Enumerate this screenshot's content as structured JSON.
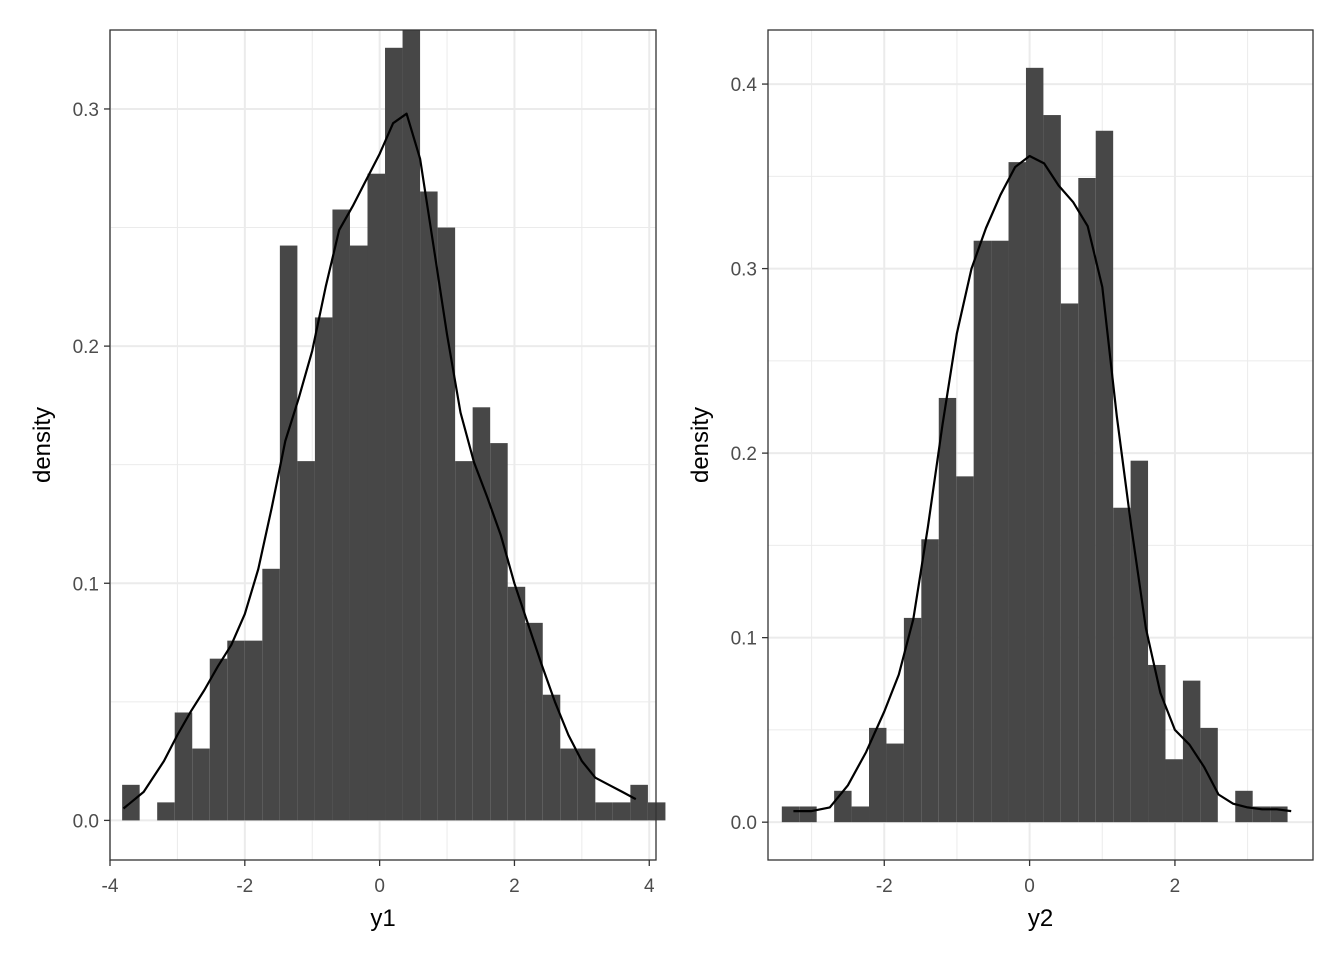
{
  "chart_data": [
    {
      "type": "bar",
      "subtype": "histogram-with-density",
      "xlabel": "y1",
      "ylabel": "density",
      "xlim": [
        -4.0,
        4.1
      ],
      "ylim": [
        -0.0167,
        0.3333
      ],
      "x_ticks": [
        -4,
        -2,
        0,
        2,
        4
      ],
      "x_tick_labels": [
        "-4",
        "-2",
        "0",
        "2",
        "4"
      ],
      "y_ticks": [
        0.0,
        0.1,
        0.2,
        0.3
      ],
      "y_tick_labels": [
        "0.0",
        "0.1",
        "0.2",
        "0.3"
      ],
      "grid": true,
      "bar_color": "#474747",
      "line_color": "#000000",
      "bins": [
        {
          "x0": -3.82,
          "x1": -3.56,
          "density": 0.015
        },
        {
          "x0": -3.56,
          "x1": -3.3,
          "density": 0.0
        },
        {
          "x0": -3.3,
          "x1": -3.04,
          "density": 0.0076
        },
        {
          "x0": -3.04,
          "x1": -2.78,
          "density": 0.0455
        },
        {
          "x0": -2.78,
          "x1": -2.52,
          "density": 0.0303
        },
        {
          "x0": -2.52,
          "x1": -2.26,
          "density": 0.0682
        },
        {
          "x0": -2.26,
          "x1": -2.0,
          "density": 0.0758
        },
        {
          "x0": -2.0,
          "x1": -1.74,
          "density": 0.0758
        },
        {
          "x0": -1.74,
          "x1": -1.48,
          "density": 0.1061
        },
        {
          "x0": -1.48,
          "x1": -1.22,
          "density": 0.2424
        },
        {
          "x0": -1.22,
          "x1": -0.96,
          "density": 0.1515
        },
        {
          "x0": -0.96,
          "x1": -0.7,
          "density": 0.2121
        },
        {
          "x0": -0.7,
          "x1": -0.44,
          "density": 0.2576
        },
        {
          "x0": -0.44,
          "x1": -0.18,
          "density": 0.2424
        },
        {
          "x0": -0.18,
          "x1": 0.08,
          "density": 0.2727
        },
        {
          "x0": 0.08,
          "x1": 0.34,
          "density": 0.3258
        },
        {
          "x0": 0.34,
          "x1": 0.6,
          "density": 0.3333
        },
        {
          "x0": 0.6,
          "x1": 0.86,
          "density": 0.2652
        },
        {
          "x0": 0.86,
          "x1": 1.12,
          "density": 0.25
        },
        {
          "x0": 1.12,
          "x1": 1.38,
          "density": 0.1515
        },
        {
          "x0": 1.38,
          "x1": 1.64,
          "density": 0.1742
        },
        {
          "x0": 1.64,
          "x1": 1.9,
          "density": 0.1591
        },
        {
          "x0": 1.9,
          "x1": 2.16,
          "density": 0.0985
        },
        {
          "x0": 2.16,
          "x1": 2.42,
          "density": 0.0833
        },
        {
          "x0": 2.42,
          "x1": 2.68,
          "density": 0.053
        },
        {
          "x0": 2.68,
          "x1": 2.94,
          "density": 0.0303
        },
        {
          "x0": 2.94,
          "x1": 3.2,
          "density": 0.0303
        },
        {
          "x0": 3.2,
          "x1": 3.46,
          "density": 0.0076
        },
        {
          "x0": 3.46,
          "x1": 3.72,
          "density": 0.0076
        },
        {
          "x0": 3.72,
          "x1": 3.98,
          "density": 0.015
        },
        {
          "x0": 3.98,
          "x1": 4.24,
          "density": 0.0076
        }
      ],
      "density_curve": {
        "x": [
          -3.8,
          -3.5,
          -3.2,
          -3.0,
          -2.8,
          -2.6,
          -2.4,
          -2.2,
          -2.0,
          -1.8,
          -1.6,
          -1.4,
          -1.2,
          -1.0,
          -0.8,
          -0.6,
          -0.4,
          -0.2,
          0.0,
          0.2,
          0.4,
          0.6,
          0.8,
          1.0,
          1.2,
          1.4,
          1.6,
          1.8,
          2.0,
          2.2,
          2.4,
          2.6,
          2.8,
          3.0,
          3.2,
          3.4,
          3.6,
          3.8
        ],
        "y": [
          0.005,
          0.012,
          0.025,
          0.036,
          0.046,
          0.055,
          0.065,
          0.074,
          0.087,
          0.106,
          0.132,
          0.16,
          0.178,
          0.198,
          0.225,
          0.249,
          0.259,
          0.27,
          0.281,
          0.294,
          0.298,
          0.279,
          0.242,
          0.205,
          0.172,
          0.151,
          0.136,
          0.12,
          0.1,
          0.083,
          0.066,
          0.05,
          0.036,
          0.025,
          0.018,
          0.015,
          0.012,
          0.009
        ]
      }
    },
    {
      "type": "bar",
      "subtype": "histogram-with-density",
      "xlabel": "y2",
      "ylabel": "density",
      "xlim": [
        -3.6,
        3.9
      ],
      "ylim": [
        -0.0205,
        0.4293
      ],
      "x_ticks": [
        -2,
        0,
        2
      ],
      "x_tick_labels": [
        "-2",
        "0",
        "2"
      ],
      "y_ticks": [
        0.0,
        0.1,
        0.2,
        0.3,
        0.4
      ],
      "y_tick_labels": [
        "0.0",
        "0.1",
        "0.2",
        "0.3",
        "0.4"
      ],
      "grid": true,
      "bar_color": "#474747",
      "line_color": "#000000",
      "bins": [
        {
          "x0": -3.41,
          "x1": -3.17,
          "density": 0.0085
        },
        {
          "x0": -3.17,
          "x1": -2.93,
          "density": 0.0085
        },
        {
          "x0": -2.93,
          "x1": -2.69,
          "density": 0.0
        },
        {
          "x0": -2.69,
          "x1": -2.45,
          "density": 0.017
        },
        {
          "x0": -2.45,
          "x1": -2.21,
          "density": 0.0085
        },
        {
          "x0": -2.21,
          "x1": -1.97,
          "density": 0.0511
        },
        {
          "x0": -1.97,
          "x1": -1.73,
          "density": 0.0426
        },
        {
          "x0": -1.73,
          "x1": -1.49,
          "density": 0.1107
        },
        {
          "x0": -1.49,
          "x1": -1.25,
          "density": 0.1533
        },
        {
          "x0": -1.25,
          "x1": -1.01,
          "density": 0.2299
        },
        {
          "x0": -1.01,
          "x1": -0.77,
          "density": 0.1874
        },
        {
          "x0": -0.77,
          "x1": -0.53,
          "density": 0.3151
        },
        {
          "x0": -0.53,
          "x1": -0.29,
          "density": 0.3151
        },
        {
          "x0": -0.29,
          "x1": -0.05,
          "density": 0.3577
        },
        {
          "x0": -0.05,
          "x1": 0.19,
          "density": 0.4088
        },
        {
          "x0": 0.19,
          "x1": 0.43,
          "density": 0.3832
        },
        {
          "x0": 0.43,
          "x1": 0.67,
          "density": 0.2811
        },
        {
          "x0": 0.67,
          "x1": 0.91,
          "density": 0.3491
        },
        {
          "x0": 0.91,
          "x1": 1.15,
          "density": 0.3747
        },
        {
          "x0": 1.15,
          "x1": 1.39,
          "density": 0.1704
        },
        {
          "x0": 1.39,
          "x1": 1.63,
          "density": 0.1959
        },
        {
          "x0": 1.63,
          "x1": 1.87,
          "density": 0.0852
        },
        {
          "x0": 1.87,
          "x1": 2.11,
          "density": 0.0341
        },
        {
          "x0": 2.11,
          "x1": 2.35,
          "density": 0.0767
        },
        {
          "x0": 2.35,
          "x1": 2.59,
          "density": 0.0511
        },
        {
          "x0": 2.59,
          "x1": 2.83,
          "density": 0.0
        },
        {
          "x0": 2.83,
          "x1": 3.07,
          "density": 0.017
        },
        {
          "x0": 3.07,
          "x1": 3.31,
          "density": 0.0085
        },
        {
          "x0": 3.31,
          "x1": 3.55,
          "density": 0.0085
        }
      ],
      "density_curve": {
        "x": [
          -3.25,
          -3.0,
          -2.75,
          -2.5,
          -2.25,
          -2.0,
          -1.8,
          -1.6,
          -1.4,
          -1.2,
          -1.0,
          -0.8,
          -0.6,
          -0.4,
          -0.2,
          0.0,
          0.2,
          0.4,
          0.6,
          0.8,
          1.0,
          1.2,
          1.4,
          1.6,
          1.8,
          2.0,
          2.2,
          2.4,
          2.6,
          2.8,
          3.0,
          3.2,
          3.4,
          3.6
        ],
        "y": [
          0.006,
          0.006,
          0.008,
          0.02,
          0.038,
          0.06,
          0.08,
          0.11,
          0.16,
          0.215,
          0.265,
          0.3,
          0.322,
          0.34,
          0.355,
          0.361,
          0.357,
          0.345,
          0.336,
          0.323,
          0.29,
          0.22,
          0.16,
          0.105,
          0.07,
          0.05,
          0.042,
          0.03,
          0.015,
          0.01,
          0.008,
          0.007,
          0.007,
          0.006
        ]
      }
    }
  ]
}
